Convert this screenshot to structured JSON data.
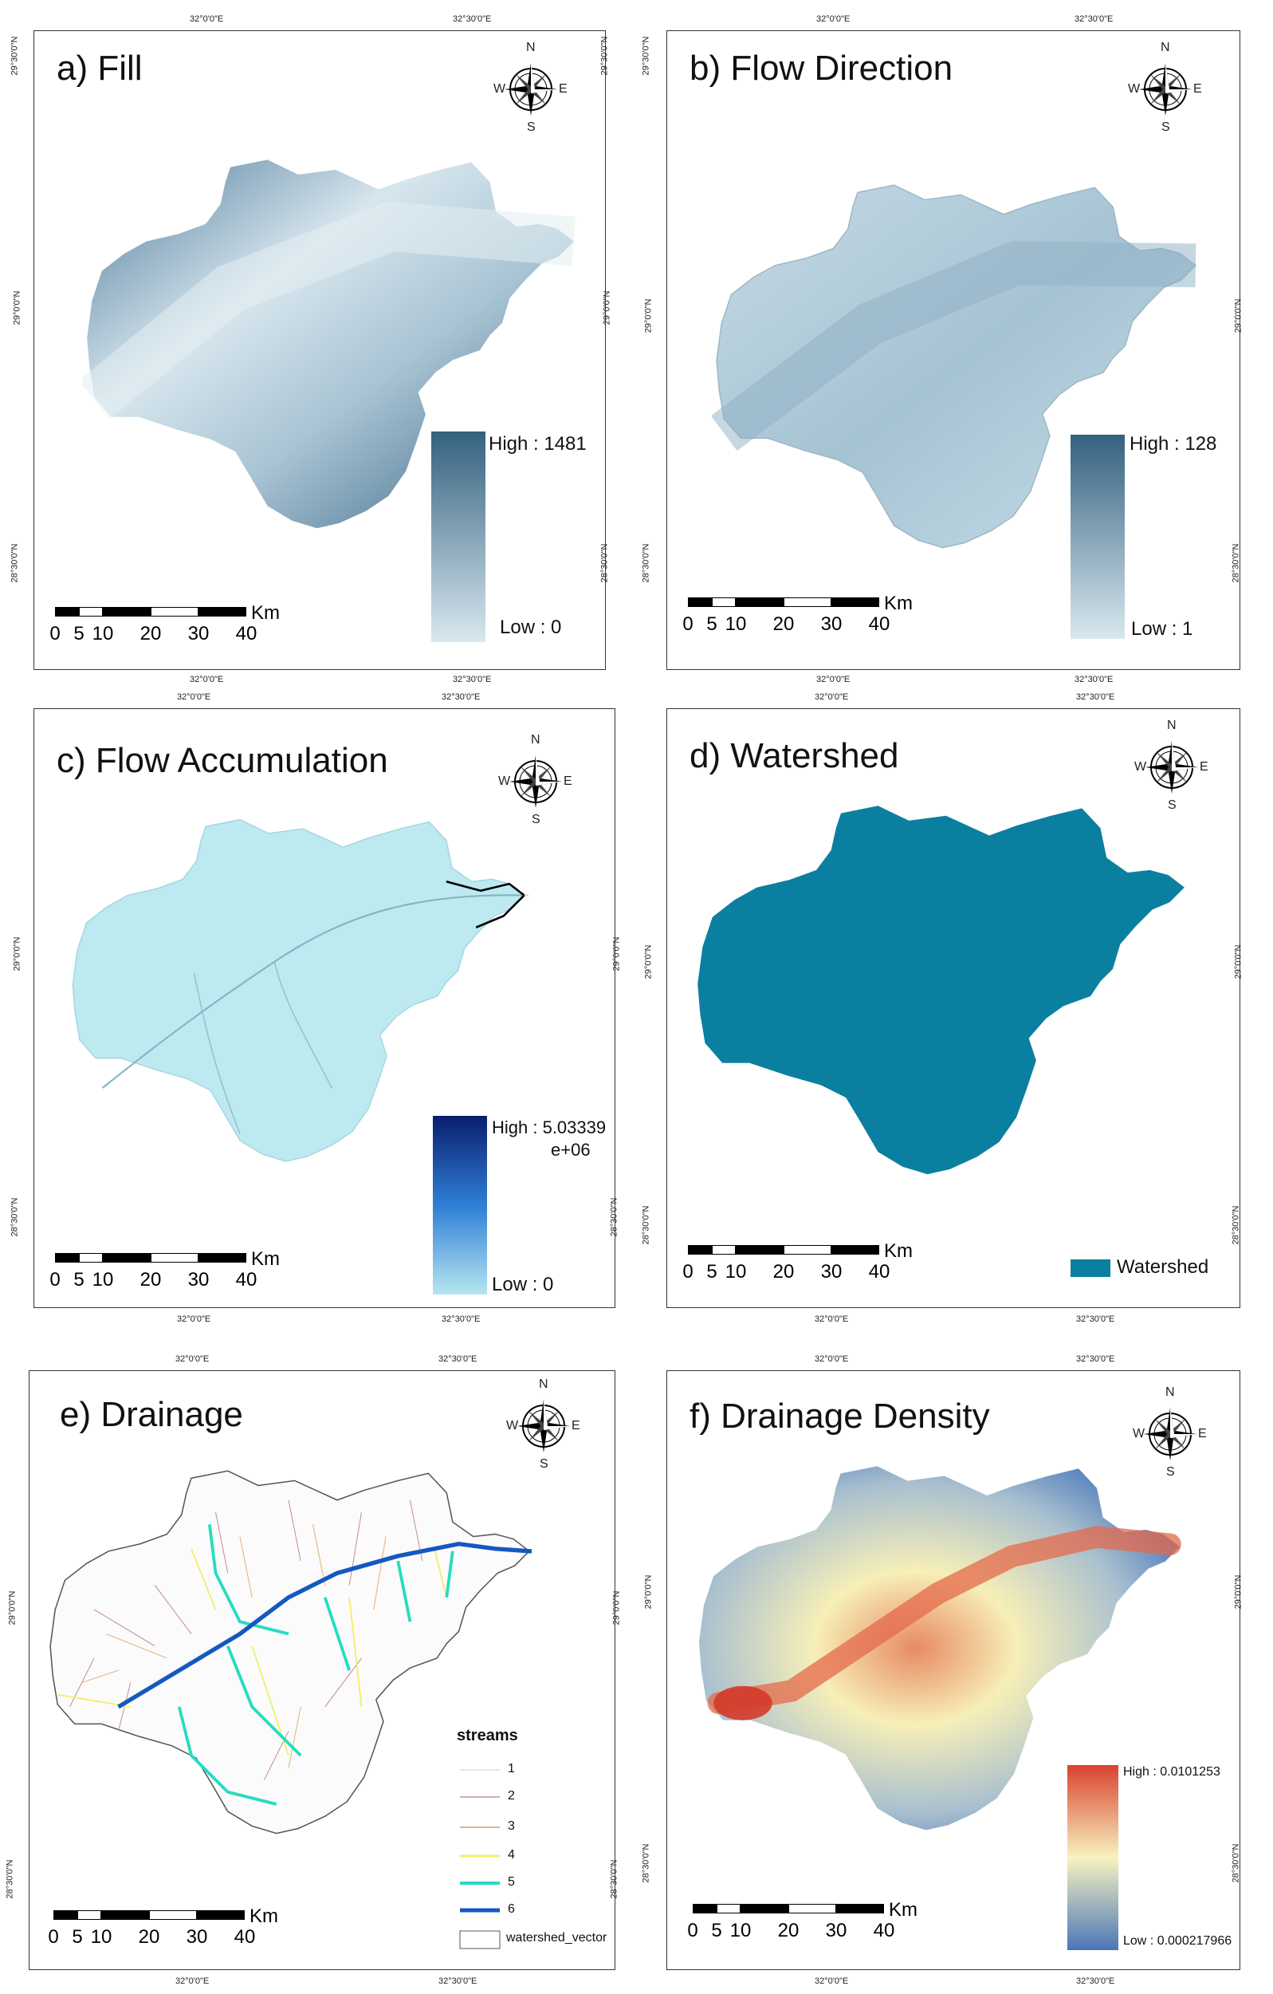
{
  "coords": {
    "lon_left": "32°0'0\"E",
    "lon_right": "32°30'0\"E",
    "lat_top": "29°30'0\"N",
    "lat_mid": "29°0'0\"N",
    "lat_bottom": "28°30'0\"N"
  },
  "compass": {
    "n": "N",
    "s": "S",
    "e": "E",
    "w": "W"
  },
  "scale": {
    "unit": "Km",
    "ticks": [
      "0",
      "5",
      "10",
      "20",
      "30",
      "40"
    ]
  },
  "panels": {
    "a": {
      "title": "a) Fill",
      "high": "High : 1481",
      "low": "Low : 0",
      "color_high": "#34617f",
      "color_low": "#d9e8ef"
    },
    "b": {
      "title": "b) Flow Direction",
      "high": "High : 128",
      "low": "Low : 1",
      "color_high": "#34617f",
      "color_low": "#d9e8ef"
    },
    "c": {
      "title": "c) Flow Accumulation",
      "high": "High : 5.03339",
      "high2": "e+06",
      "low": "Low : 0",
      "color_high": "#0a1e6e",
      "color_low": "#b6e6f0"
    },
    "d": {
      "title": "d) Watershed",
      "legend": "Watershed",
      "color": "#0b7fa0"
    },
    "e": {
      "title": "e) Drainage",
      "legend_title": "streams",
      "stream_classes": [
        "1",
        "2",
        "3",
        "4",
        "5",
        "6"
      ],
      "stream_colors": [
        "#cfcfcf",
        "#c9909a",
        "#e8b47a",
        "#f2ee6a",
        "#27dcc0",
        "#1458c0"
      ],
      "boundary_label": "watershed_vector"
    },
    "f": {
      "title": "f) Drainage Density",
      "high": "High : 0.0101253",
      "low": "Low : 0.000217966",
      "color_high": "#d9422f",
      "color_mid": "#f8f3c0",
      "color_low": "#4a76b8"
    }
  }
}
